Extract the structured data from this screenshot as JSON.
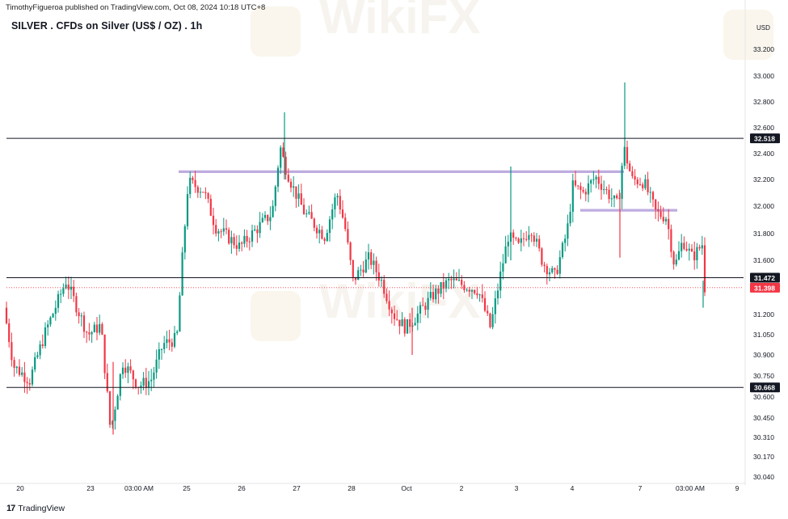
{
  "header": {
    "published": "TimothyFigueroa published on TradingView.com, Oct 08, 2024 10:18 UTC+8",
    "title": "SILVER . CFDs on Silver (US$ / OZ) . 1h"
  },
  "footer": {
    "brand": "TradingView",
    "logo": "17"
  },
  "watermark": "WikiFX",
  "chart_data": {
    "type": "candlestick",
    "currency": "USD",
    "y_ticks": [
      "33.200",
      "33.000",
      "32.800",
      "32.600",
      "32.400",
      "32.200",
      "32.000",
      "31.800",
      "31.600",
      "31.200",
      "31.050",
      "30.900",
      "30.750",
      "30.600",
      "30.450",
      "30.310",
      "30.170",
      "30.040"
    ],
    "x_ticks": [
      "20",
      "23",
      "03:00 AM",
      "25",
      "26",
      "27",
      "28",
      "Oct",
      "2",
      "3",
      "4",
      "7",
      "03:00 AM",
      "9"
    ],
    "horizontal_levels": [
      {
        "value": 32.518,
        "label": "32.518",
        "color": "#131722"
      },
      {
        "value": 31.472,
        "label": "31.472",
        "color": "#131722"
      },
      {
        "value": 30.668,
        "label": "30.668",
        "color": "#131722"
      }
    ],
    "last_price": {
      "value": 31.398,
      "label": "31.398",
      "color": "#f23645"
    },
    "zones": [
      {
        "from_x": "25",
        "to_x": "7",
        "value": 32.26,
        "color": "#b39ddb"
      },
      {
        "from_x": "4",
        "to_x": "03:00 AM",
        "value": 31.97,
        "color": "#b39ddb"
      }
    ],
    "colors": {
      "up": "#089981",
      "down": "#f23645"
    }
  }
}
